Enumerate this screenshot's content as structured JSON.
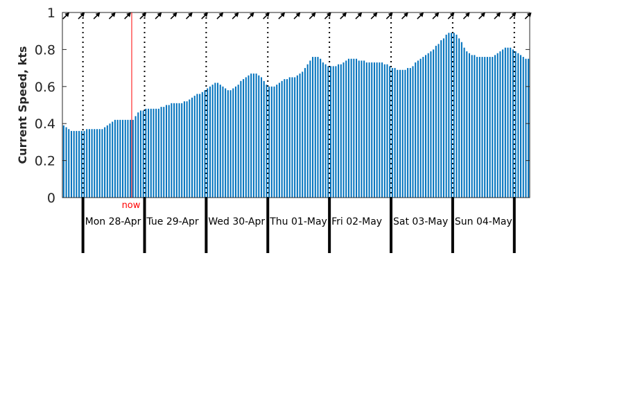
{
  "chart_data": {
    "type": "bar",
    "title": "",
    "xlabel": "",
    "ylabel": "Current Speed, kts",
    "ylim": [
      0,
      1
    ],
    "yticks": [
      "0",
      "0.2",
      "0.4",
      "0.6",
      "0.8",
      "1"
    ],
    "grid": false,
    "bar_color": "#0072BD",
    "day_labels": [
      "Mon 28-Apr",
      "Tue 29-Apr",
      "Wed 30-Apr",
      "Thu 01-May",
      "Fri 02-May",
      "Sat 03-May",
      "Sun 04-May"
    ],
    "now_label": "now",
    "now_color": "#ff0000",
    "now_hour": 27,
    "first_midnight_hour": 8,
    "hours_per_bar": 1,
    "direction_arrow_angle_deg": 45,
    "values": [
      0.39,
      0.38,
      0.37,
      0.36,
      0.36,
      0.36,
      0.36,
      0.36,
      0.36,
      0.37,
      0.37,
      0.37,
      0.37,
      0.37,
      0.37,
      0.37,
      0.38,
      0.39,
      0.4,
      0.41,
      0.42,
      0.42,
      0.42,
      0.42,
      0.42,
      0.42,
      0.42,
      0.42,
      0.44,
      0.46,
      0.47,
      0.47,
      0.48,
      0.48,
      0.48,
      0.48,
      0.48,
      0.48,
      0.49,
      0.49,
      0.5,
      0.5,
      0.51,
      0.51,
      0.51,
      0.51,
      0.51,
      0.52,
      0.52,
      0.53,
      0.54,
      0.55,
      0.56,
      0.56,
      0.57,
      0.58,
      0.59,
      0.6,
      0.61,
      0.62,
      0.62,
      0.61,
      0.6,
      0.59,
      0.58,
      0.58,
      0.59,
      0.6,
      0.61,
      0.63,
      0.64,
      0.65,
      0.66,
      0.67,
      0.67,
      0.67,
      0.66,
      0.65,
      0.63,
      0.61,
      0.6,
      0.6,
      0.6,
      0.61,
      0.62,
      0.63,
      0.64,
      0.64,
      0.65,
      0.65,
      0.65,
      0.66,
      0.67,
      0.68,
      0.7,
      0.72,
      0.74,
      0.76,
      0.76,
      0.76,
      0.75,
      0.73,
      0.72,
      0.71,
      0.71,
      0.71,
      0.71,
      0.72,
      0.72,
      0.73,
      0.74,
      0.75,
      0.75,
      0.75,
      0.75,
      0.74,
      0.74,
      0.74,
      0.73,
      0.73,
      0.73,
      0.73,
      0.73,
      0.73,
      0.73,
      0.72,
      0.72,
      0.71,
      0.7,
      0.7,
      0.69,
      0.69,
      0.69,
      0.69,
      0.7,
      0.7,
      0.71,
      0.73,
      0.74,
      0.75,
      0.76,
      0.77,
      0.78,
      0.79,
      0.8,
      0.82,
      0.83,
      0.85,
      0.86,
      0.88,
      0.89,
      0.89,
      0.89,
      0.88,
      0.86,
      0.84,
      0.81,
      0.79,
      0.78,
      0.77,
      0.77,
      0.76,
      0.76,
      0.76,
      0.76,
      0.76,
      0.76,
      0.76,
      0.77,
      0.78,
      0.79,
      0.8,
      0.81,
      0.81,
      0.81,
      0.8,
      0.79,
      0.78,
      0.77,
      0.76,
      0.75,
      0.75
    ]
  }
}
